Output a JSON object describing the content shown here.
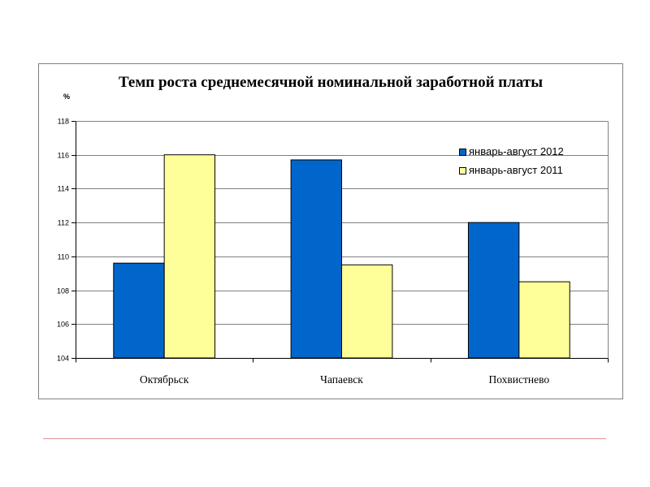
{
  "chart_data": {
    "type": "bar",
    "title": "Темп роста среднемесячной номинальной заработной платы",
    "ylabel": "%",
    "categories": [
      "Октябрьск",
      "Чапаевск",
      "Похвистнево"
    ],
    "series": [
      {
        "name": "январь-август 2012",
        "color": "#0066CC",
        "values": [
          109.6,
          115.7,
          112.0
        ]
      },
      {
        "name": "январь-август 2011",
        "color": "#FFFF99",
        "values": [
          116.0,
          109.5,
          108.5
        ]
      }
    ],
    "ylim": [
      104,
      118
    ],
    "yticks": [
      104,
      106,
      108,
      110,
      112,
      114,
      116,
      118
    ],
    "grid": true,
    "legend": "top-right"
  }
}
